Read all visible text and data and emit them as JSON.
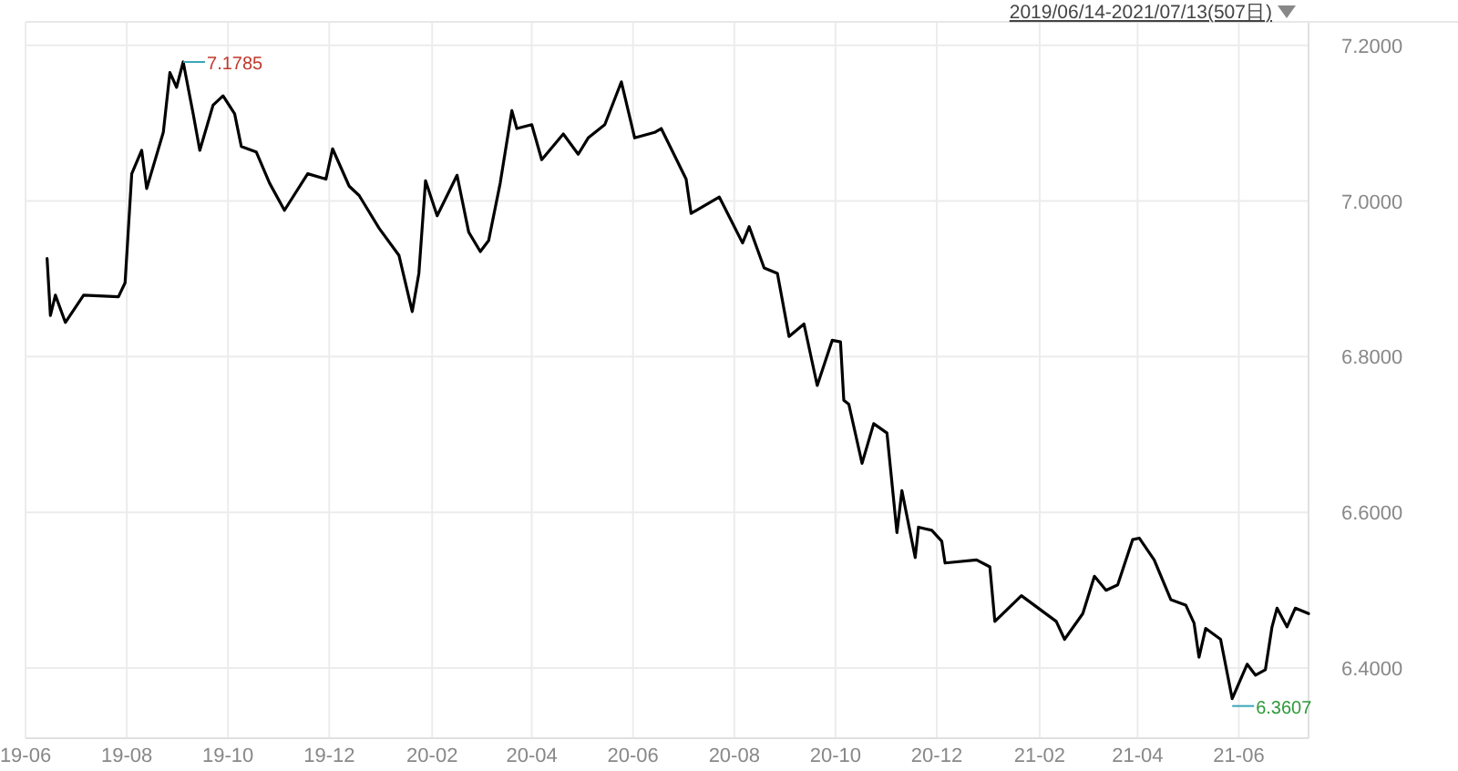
{
  "chart_data": {
    "type": "line",
    "grid": true,
    "marker": "none",
    "line_style": "solid",
    "xlim": [
      "2019-06-01",
      "2021-07-13"
    ],
    "xticks": [
      {
        "value": "2019-06",
        "label": "19-06"
      },
      {
        "value": "2019-08",
        "label": "19-08"
      },
      {
        "value": "2019-10",
        "label": "19-10"
      },
      {
        "value": "2019-12",
        "label": "19-12"
      },
      {
        "value": "2020-02",
        "label": "20-02"
      },
      {
        "value": "2020-04",
        "label": "20-04"
      },
      {
        "value": "2020-06",
        "label": "20-06"
      },
      {
        "value": "2020-08",
        "label": "20-08"
      },
      {
        "value": "2020-10",
        "label": "20-10"
      },
      {
        "value": "2020-12",
        "label": "20-12"
      },
      {
        "value": "2021-02",
        "label": "21-02"
      },
      {
        "value": "2021-04",
        "label": "21-04"
      },
      {
        "value": "2021-06",
        "label": "21-06"
      }
    ],
    "ylim": [
      6.31,
      7.23
    ],
    "yticks": [
      {
        "value": 6.4,
        "label": "6.4000"
      },
      {
        "value": 6.6,
        "label": "6.6000"
      },
      {
        "value": 6.8,
        "label": "6.8000"
      },
      {
        "value": 7.0,
        "label": "7.0000"
      },
      {
        "value": 7.2,
        "label": "7.2000"
      }
    ],
    "annotations": [
      "2019/06/14-2021/07/13(507日)",
      {
        "text": "7.1785",
        "x": "2019-09-04",
        "y": 7.1785
      },
      {
        "text": "6.3607",
        "x": "2021-05-28",
        "y": 6.3607
      }
    ],
    "series": [
      {
        "color": "#000000",
        "x": [
          "2019-06-14",
          "2019-06-16",
          "2019-06-19",
          "2019-06-25",
          "2019-07-06",
          "2019-07-27",
          "2019-07-31",
          "2019-08-04",
          "2019-08-10",
          "2019-08-13",
          "2019-08-23",
          "2019-08-27",
          "2019-08-31",
          "2019-09-04",
          "2019-09-10",
          "2019-09-14",
          "2019-09-22",
          "2019-09-28",
          "2019-10-05",
          "2019-10-09",
          "2019-10-18",
          "2019-10-26",
          "2019-11-04",
          "2019-11-18",
          "2019-11-29",
          "2019-12-03",
          "2019-12-13",
          "2019-12-19",
          "2019-12-31",
          "2020-01-12",
          "2020-01-20",
          "2020-01-24",
          "2020-01-28",
          "2020-02-04",
          "2020-02-16",
          "2020-02-23",
          "2020-03-01",
          "2020-03-06",
          "2020-03-13",
          "2020-03-20",
          "2020-03-23",
          "2020-04-01",
          "2020-04-07",
          "2020-04-20",
          "2020-04-29",
          "2020-05-05",
          "2020-05-15",
          "2020-05-25",
          "2020-06-02",
          "2020-06-14",
          "2020-06-18",
          "2020-07-03",
          "2020-07-06",
          "2020-07-23",
          "2020-08-06",
          "2020-08-10",
          "2020-08-19",
          "2020-08-27",
          "2020-09-03",
          "2020-09-12",
          "2020-09-20",
          "2020-09-29",
          "2020-10-04",
          "2020-10-06",
          "2020-10-09",
          "2020-10-17",
          "2020-10-24",
          "2020-11-01",
          "2020-11-07",
          "2020-11-10",
          "2020-11-18",
          "2020-11-20",
          "2020-11-28",
          "2020-12-04",
          "2020-12-06",
          "2020-12-25",
          "2021-01-02",
          "2021-01-05",
          "2021-01-21",
          "2021-02-11",
          "2021-02-16",
          "2021-02-27",
          "2021-03-06",
          "2021-03-13",
          "2021-03-20",
          "2021-03-29",
          "2021-04-02",
          "2021-04-11",
          "2021-04-21",
          "2021-04-30",
          "2021-05-05",
          "2021-05-08",
          "2021-05-12",
          "2021-05-21",
          "2021-05-28",
          "2021-06-06",
          "2021-06-11",
          "2021-06-17",
          "2021-06-21",
          "2021-06-24",
          "2021-06-30",
          "2021-07-05",
          "2021-07-13"
        ],
        "values": [
          6.926,
          6.853,
          6.879,
          6.844,
          6.879,
          6.877,
          6.895,
          7.035,
          7.065,
          7.016,
          7.088,
          7.165,
          7.146,
          7.1785,
          7.112,
          7.065,
          7.123,
          7.135,
          7.112,
          7.07,
          7.063,
          7.023,
          6.988,
          7.035,
          7.028,
          7.067,
          7.019,
          7.007,
          6.965,
          6.93,
          6.858,
          6.907,
          7.026,
          6.981,
          7.033,
          6.96,
          6.935,
          6.949,
          7.023,
          7.116,
          7.093,
          7.098,
          7.053,
          7.086,
          7.06,
          7.081,
          7.098,
          7.153,
          7.081,
          7.088,
          7.093,
          7.028,
          6.984,
          7.005,
          6.946,
          6.967,
          6.914,
          6.907,
          6.826,
          6.842,
          6.763,
          6.821,
          6.819,
          6.744,
          6.739,
          6.663,
          6.714,
          6.702,
          6.574,
          6.628,
          6.542,
          6.581,
          6.577,
          6.563,
          6.535,
          6.539,
          6.53,
          6.46,
          6.493,
          6.46,
          6.437,
          6.47,
          6.518,
          6.5,
          6.507,
          6.565,
          6.567,
          6.539,
          6.488,
          6.481,
          6.458,
          6.414,
          6.451,
          6.437,
          6.3607,
          6.405,
          6.391,
          6.398,
          6.453,
          6.477,
          6.453,
          6.477,
          6.47
        ]
      }
    ]
  }
}
